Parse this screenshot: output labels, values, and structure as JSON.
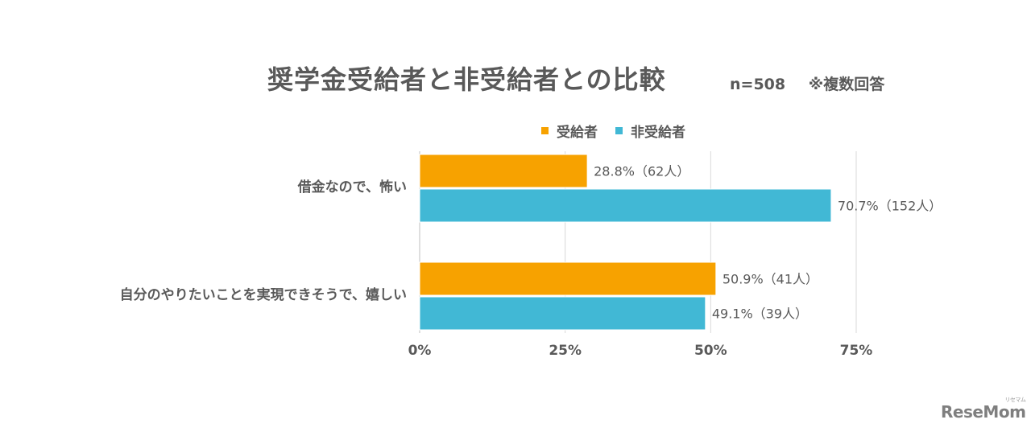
{
  "chart_data": {
    "type": "bar",
    "orientation": "horizontal",
    "title": "奨学金受給者と非受給者との比較",
    "sample_size": "n=508",
    "note": "※複数回答",
    "categories": [
      "借金なので、怖い",
      "自分のやりたいことを実現できそうで、嬉しい"
    ],
    "series": [
      {
        "name": "受給者",
        "color": "#F7A200",
        "values": [
          28.8,
          50.9
        ],
        "labels": [
          "28.8%（62人）",
          "50.9%（41人）"
        ]
      },
      {
        "name": "非受給者",
        "color": "#41B8D5",
        "values": [
          70.7,
          49.1
        ],
        "labels": [
          "70.7%（152人）",
          "49.1%（39人）"
        ]
      }
    ],
    "xlim": [
      0,
      75
    ],
    "ticks": [
      0,
      25,
      50,
      75
    ],
    "tick_labels": [
      "0%",
      "25%",
      "50%",
      "75%"
    ],
    "grid": true,
    "legend_position": "top"
  },
  "watermark": "ReseMom"
}
